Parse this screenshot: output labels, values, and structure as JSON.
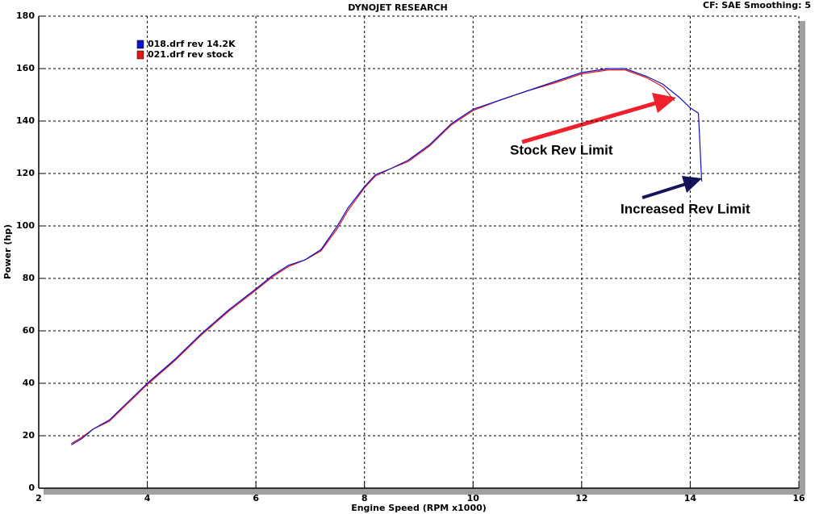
{
  "chart_data": {
    "type": "line",
    "title": "DYNOJET RESEARCH",
    "subtitle": "CF: SAE  Smoothing: 5",
    "x_label": "Engine Speed (RPM x1000)",
    "y_label": "Power (hp)",
    "xlim": [
      2,
      16
    ],
    "xticks": [
      2,
      4,
      6,
      8,
      10,
      12,
      14,
      16
    ],
    "ylim": [
      0,
      180
    ],
    "yticks": [
      0,
      20,
      40,
      60,
      80,
      100,
      120,
      140,
      160,
      180
    ],
    "grid": true,
    "legend": "top-left",
    "series": [
      {
        "name": "018.drf rev 14.2K",
        "color": "#1010c8",
        "x": [
          2.6,
          2.8,
          3.0,
          3.3,
          3.6,
          4.0,
          4.5,
          5.0,
          5.5,
          6.0,
          6.3,
          6.6,
          6.9,
          7.2,
          7.5,
          7.7,
          8.0,
          8.2,
          8.5,
          8.8,
          9.2,
          9.6,
          10.0,
          10.5,
          11.0,
          11.5,
          12.0,
          12.5,
          12.8,
          13.2,
          13.5,
          13.8,
          14.0,
          14.15,
          14.17,
          14.21
        ],
        "values": [
          16.5,
          19,
          22.5,
          26,
          32,
          40,
          49,
          59,
          68,
          76,
          81,
          85,
          87,
          91,
          100,
          107,
          115,
          119.5,
          122,
          125,
          131,
          139,
          144.5,
          148,
          151.5,
          155,
          158.5,
          160,
          160,
          157,
          154,
          149,
          145,
          143,
          135,
          117
        ]
      },
      {
        "name": "021.drf rev stock",
        "color": "#e01818",
        "x": [
          2.6,
          2.8,
          3.0,
          3.3,
          3.6,
          4.0,
          4.5,
          5.0,
          5.5,
          6.0,
          6.3,
          6.6,
          6.9,
          7.2,
          7.5,
          7.7,
          8.0,
          8.2,
          8.5,
          8.8,
          9.2,
          9.6,
          10.0,
          10.5,
          11.0,
          11.5,
          12.0,
          12.5,
          12.8,
          13.2,
          13.5,
          13.71
        ],
        "values": [
          17,
          19.5,
          22.5,
          25.5,
          31.5,
          39.5,
          48.5,
          58.5,
          67.5,
          75.5,
          80.5,
          84.5,
          87,
          90.5,
          99,
          106,
          114.5,
          119,
          122,
          124.5,
          130.5,
          138.5,
          144,
          148,
          151.5,
          154.5,
          158,
          159.5,
          159.5,
          156.5,
          153,
          147.7
        ]
      }
    ],
    "annotations": [
      "Stock Rev Limit",
      "Increased Rev Limit"
    ]
  }
}
